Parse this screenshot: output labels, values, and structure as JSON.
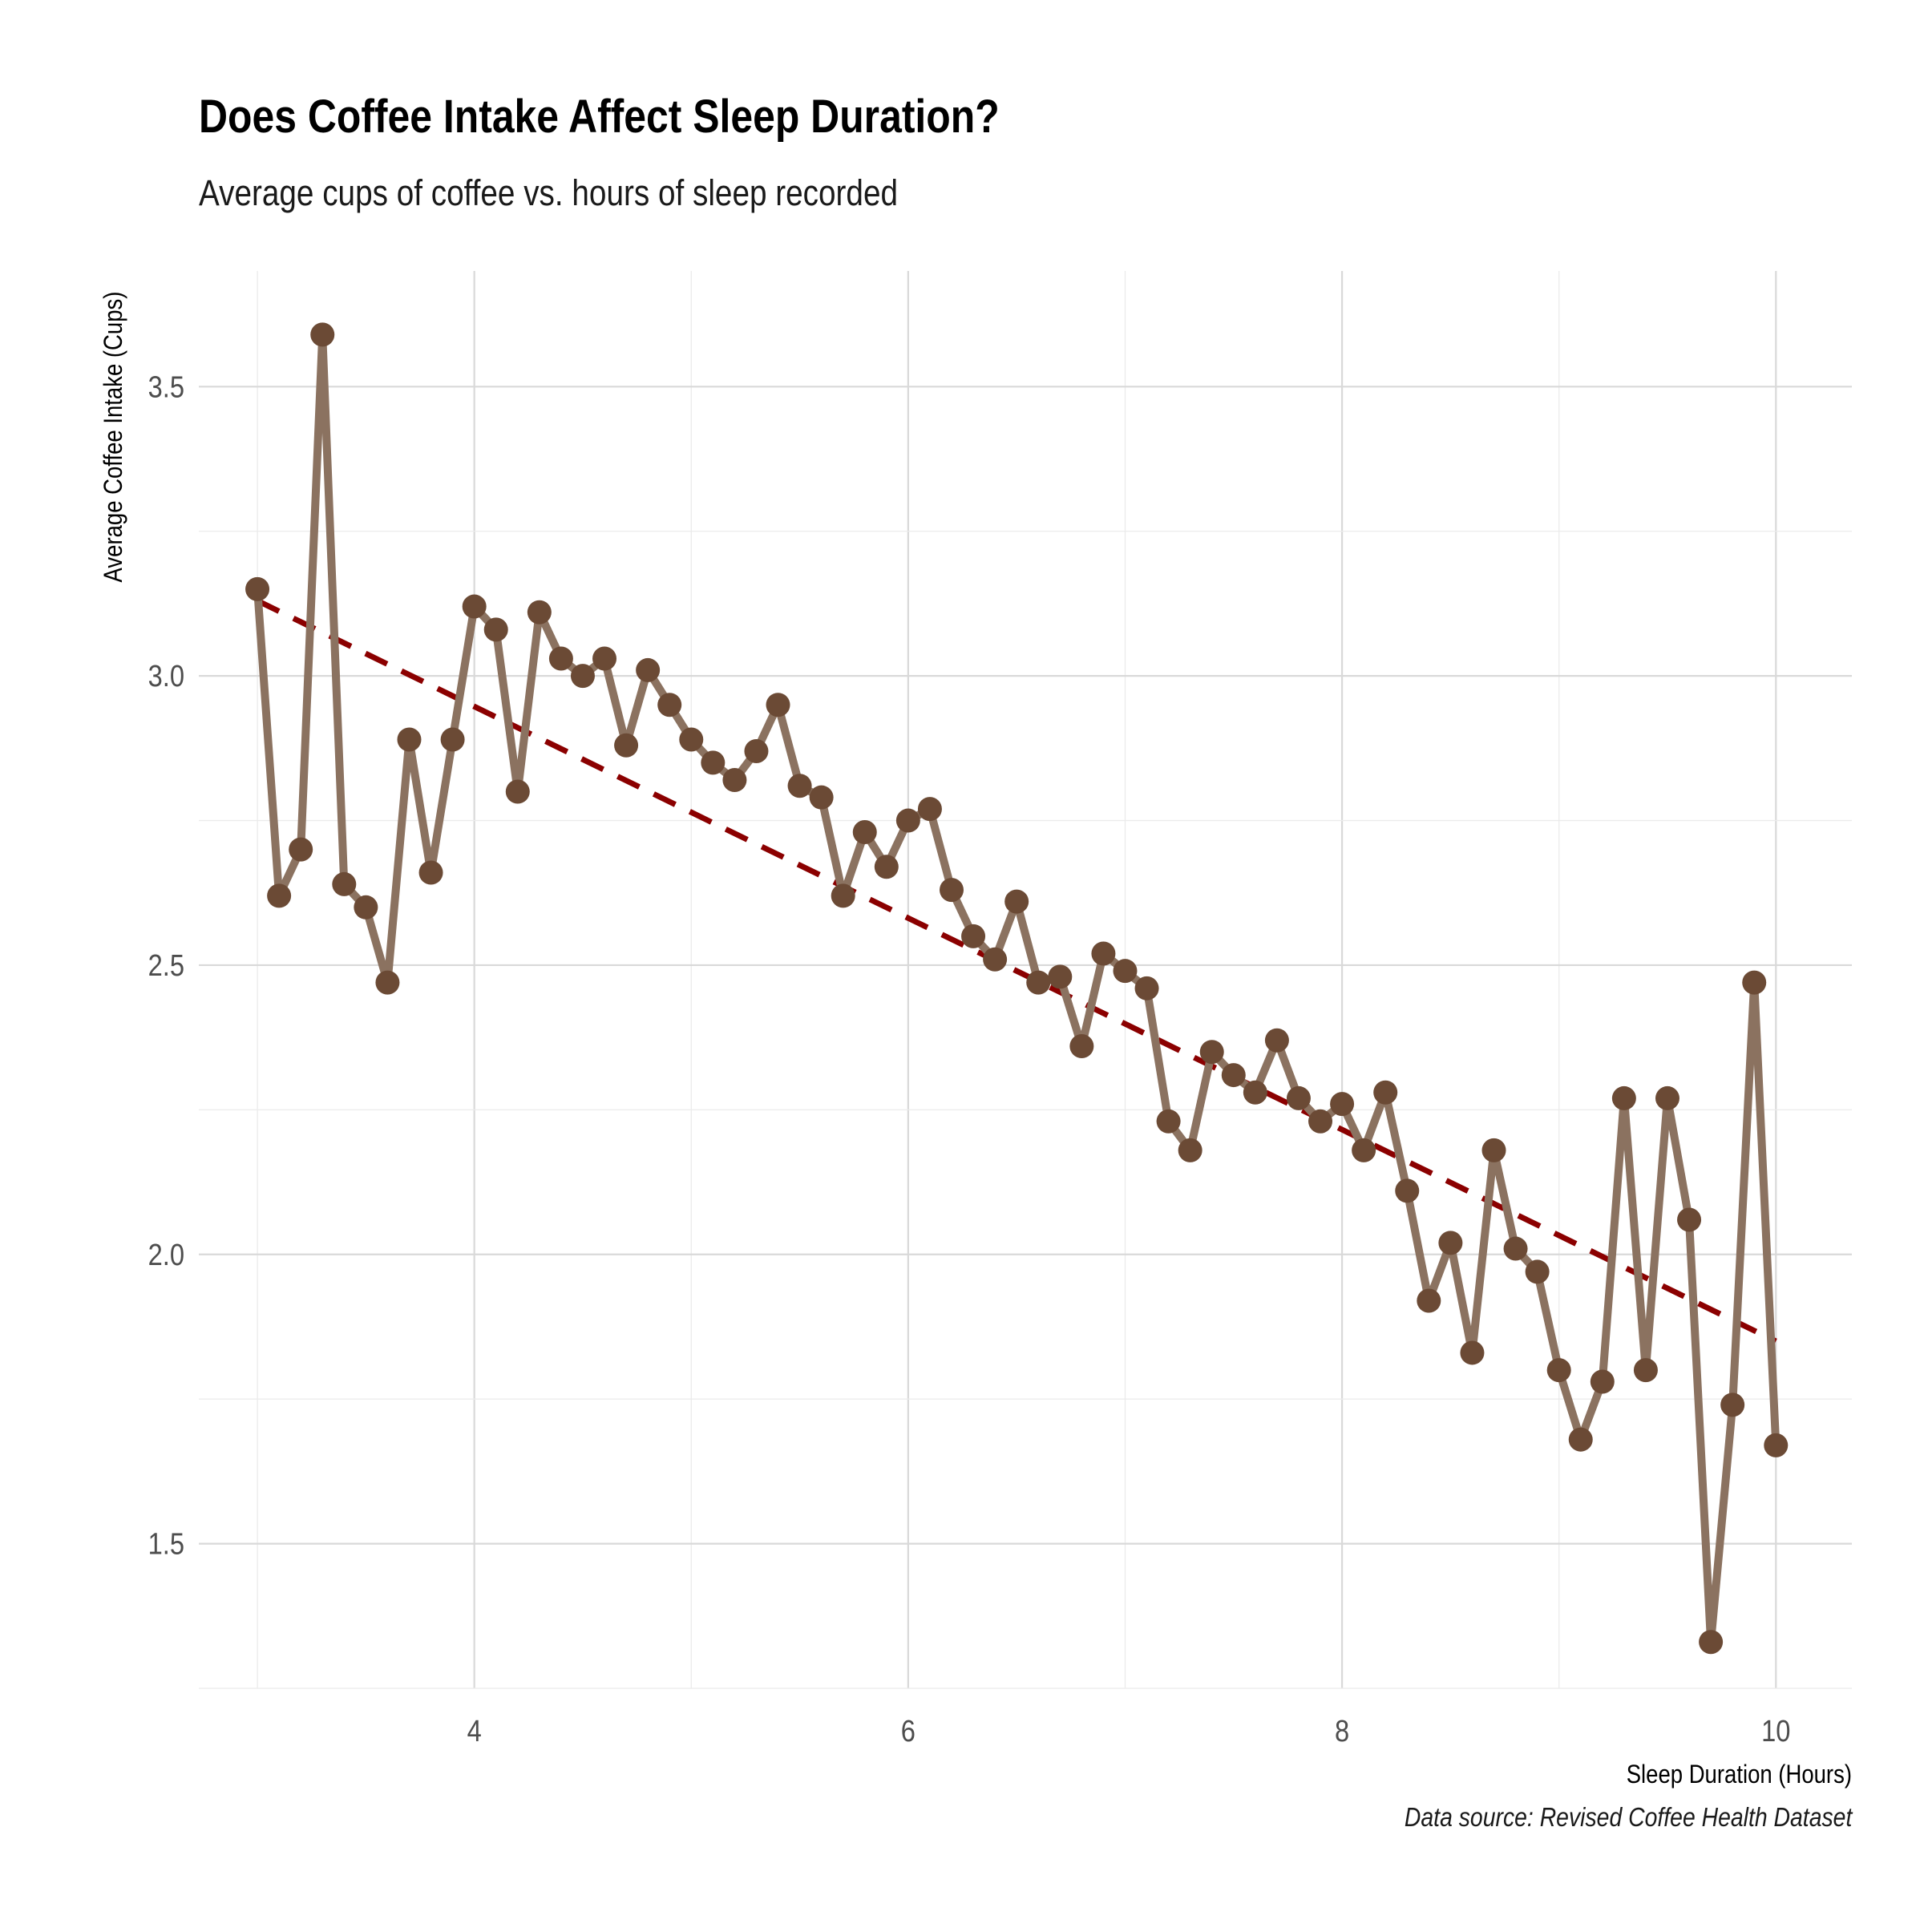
{
  "title": "Does Coffee Intake Affect Sleep Duration?",
  "subtitle": "Average cups of coffee vs. hours of sleep recorded",
  "caption": "Data source: Revised Coffee Health Dataset",
  "colors": {
    "line": "#8b7260",
    "points": "#6b4a35",
    "trend": "#8b0000",
    "grid_major": "#d9d9d9",
    "grid_minor": "#ebebeb"
  },
  "chart_data": {
    "type": "line",
    "xlabel": "Sleep Duration (Hours)",
    "ylabel": "Average Coffee Intake (Cups)",
    "xlim": [
      2.73,
      10.35
    ],
    "ylim": [
      1.25,
      3.7
    ],
    "x_ticks": [
      4,
      6,
      8,
      10
    ],
    "y_ticks": [
      1.5,
      2.0,
      2.5,
      3.0,
      3.5
    ],
    "x_tick_labels": [
      "4",
      "6",
      "8",
      "10"
    ],
    "y_tick_labels": [
      "1.5",
      "2.0",
      "2.5",
      "3.0",
      "3.5"
    ],
    "grid": true,
    "legend": "none",
    "series": [
      {
        "x": [
          3.0,
          3.1,
          3.2,
          3.3,
          3.4,
          3.5,
          3.6,
          3.7,
          3.8,
          3.9,
          4.0,
          4.1,
          4.2,
          4.3,
          4.4,
          4.5,
          4.6,
          4.7,
          4.8,
          4.9,
          5.0,
          5.1,
          5.2,
          5.3,
          5.4,
          5.5,
          5.6,
          5.7,
          5.8,
          5.9,
          6.0,
          6.1,
          6.2,
          6.3,
          6.4,
          6.5,
          6.6,
          6.7,
          6.8,
          6.9,
          7.0,
          7.1,
          7.2,
          7.3,
          7.4,
          7.5,
          7.6,
          7.7,
          7.8,
          7.9,
          8.0,
          8.1,
          8.2,
          8.3,
          8.4,
          8.5,
          8.6,
          8.7,
          8.8,
          8.9,
          9.0,
          9.1,
          9.2,
          9.3,
          9.4,
          9.5,
          9.6,
          9.7,
          9.8,
          9.9,
          10.0
        ],
        "values": [
          3.15,
          2.62,
          2.7,
          3.59,
          2.64,
          2.6,
          2.47,
          2.89,
          2.66,
          2.89,
          3.12,
          3.08,
          2.8,
          3.11,
          3.03,
          3.0,
          3.03,
          2.88,
          3.01,
          2.95,
          2.89,
          2.85,
          2.82,
          2.87,
          2.95,
          2.81,
          2.79,
          2.62,
          2.73,
          2.67,
          2.75,
          2.77,
          2.63,
          2.55,
          2.51,
          2.61,
          2.47,
          2.48,
          2.36,
          2.52,
          2.49,
          2.46,
          2.23,
          2.18,
          2.35,
          2.31,
          2.28,
          2.37,
          2.27,
          2.23,
          2.26,
          2.18,
          2.28,
          2.11,
          1.92,
          2.02,
          1.83,
          2.18,
          2.01,
          1.97,
          1.8,
          1.68,
          1.78,
          2.27,
          1.8,
          2.27,
          2.06,
          1.33,
          1.74,
          2.47,
          1.67
        ]
      }
    ],
    "trend_line": {
      "style": "dashed",
      "x": [
        3.0,
        10.0
      ],
      "values": [
        3.13,
        1.85
      ]
    }
  }
}
